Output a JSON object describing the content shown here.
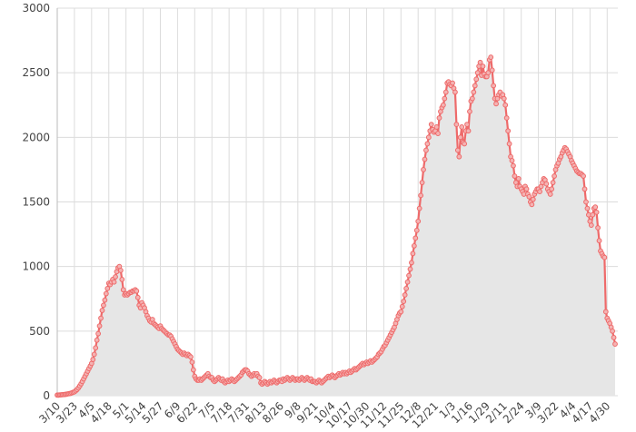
{
  "chart_data": {
    "type": "area",
    "categories": [
      "3/10",
      null,
      null,
      null,
      null,
      null,
      null,
      null,
      null,
      null,
      null,
      null,
      null,
      "3/23",
      null,
      null,
      null,
      null,
      null,
      null,
      null,
      null,
      null,
      null,
      null,
      null,
      "4/5",
      null,
      null,
      null,
      null,
      null,
      null,
      null,
      null,
      null,
      null,
      null,
      null,
      "4/18",
      null,
      null,
      null,
      null,
      null,
      null,
      null,
      null,
      null,
      null,
      null,
      null,
      "5/1",
      null,
      null,
      null,
      null,
      null,
      null,
      null,
      null,
      null,
      null,
      null,
      null,
      "5/14",
      null,
      null,
      null,
      null,
      null,
      null,
      null,
      null,
      null,
      null,
      null,
      null,
      "5/27",
      null,
      null,
      null,
      null,
      null,
      null,
      null,
      null,
      null,
      null,
      null,
      null,
      "6/9",
      null,
      null,
      null,
      null,
      null,
      null,
      null,
      null,
      null,
      null,
      null,
      null,
      "6/22",
      null,
      null,
      null,
      null,
      null,
      null,
      null,
      null,
      null,
      null,
      null,
      null,
      "7/5",
      null,
      null,
      null,
      null,
      null,
      null,
      null,
      null,
      null,
      null,
      null,
      null,
      "7/18",
      null,
      null,
      null,
      null,
      null,
      null,
      null,
      null,
      null,
      null,
      null,
      null,
      "7/31",
      null,
      null,
      null,
      null,
      null,
      null,
      null,
      null,
      null,
      null,
      null,
      null,
      "8/13",
      null,
      null,
      null,
      null,
      null,
      null,
      null,
      null,
      null,
      null,
      null,
      null,
      "8/26",
      null,
      null,
      null,
      null,
      null,
      null,
      null,
      null,
      null,
      null,
      null,
      null,
      "9/8",
      null,
      null,
      null,
      null,
      null,
      null,
      null,
      null,
      null,
      null,
      null,
      null,
      "9/21",
      null,
      null,
      null,
      null,
      null,
      null,
      null,
      null,
      null,
      null,
      null,
      null,
      "10/4",
      null,
      null,
      null,
      null,
      null,
      null,
      null,
      null,
      null,
      null,
      null,
      null,
      "10/17",
      null,
      null,
      null,
      null,
      null,
      null,
      null,
      null,
      null,
      null,
      null,
      null,
      "10/30",
      null,
      null,
      null,
      null,
      null,
      null,
      null,
      null,
      null,
      null,
      null,
      null,
      "11/12",
      null,
      null,
      null,
      null,
      null,
      null,
      null,
      null,
      null,
      null,
      null,
      null,
      "11/25",
      null,
      null,
      null,
      null,
      null,
      null,
      null,
      null,
      null,
      null,
      null,
      null,
      "12/8",
      null,
      null,
      null,
      null,
      null,
      null,
      null,
      null,
      null,
      null,
      null,
      null,
      "12/21",
      null,
      null,
      null,
      null,
      null,
      null,
      null,
      null,
      null,
      null,
      null,
      null,
      "1/3",
      null,
      null,
      null,
      null,
      null,
      null,
      null,
      null,
      null,
      null,
      null,
      null,
      "1/16",
      null,
      null,
      null,
      null,
      null,
      null,
      null,
      null,
      null,
      null,
      null,
      null,
      "1/29",
      null,
      null,
      null,
      null,
      null,
      null,
      null,
      null,
      null,
      null,
      null,
      null,
      "2/11",
      null,
      null,
      null,
      null,
      null,
      null,
      null,
      null,
      null,
      null,
      null,
      null,
      "2/24",
      null,
      null,
      null,
      null,
      null,
      null,
      null,
      null,
      null,
      null,
      null,
      null,
      "3/9",
      null,
      null,
      null,
      null,
      null,
      null,
      null,
      null,
      null,
      null,
      null,
      null,
      "3/22",
      null,
      null,
      null,
      null,
      null,
      null,
      null,
      null,
      null,
      null,
      null,
      null,
      "4/4",
      null,
      null,
      null,
      null,
      null,
      null,
      null,
      null,
      null,
      null,
      null,
      null,
      "4/17",
      null,
      null,
      null,
      null,
      null,
      null,
      null,
      null,
      null,
      null,
      null,
      null,
      "4/30",
      null,
      null,
      null,
      null,
      null,
      null
    ],
    "values": [
      5,
      5,
      6,
      7,
      8,
      9,
      10,
      12,
      14,
      16,
      18,
      22,
      26,
      30,
      38,
      48,
      60,
      75,
      92,
      110,
      130,
      150,
      170,
      190,
      210,
      230,
      250,
      280,
      320,
      370,
      430,
      480,
      540,
      600,
      660,
      700,
      740,
      790,
      830,
      870,
      860,
      880,
      900,
      880,
      920,
      960,
      990,
      1000,
      970,
      900,
      820,
      780,
      790,
      780,
      790,
      800,
      800,
      810,
      810,
      820,
      810,
      760,
      700,
      680,
      720,
      700,
      680,
      650,
      620,
      600,
      580,
      570,
      590,
      560,
      550,
      540,
      530,
      520,
      540,
      520,
      510,
      500,
      490,
      480,
      470,
      470,
      460,
      440,
      420,
      400,
      380,
      360,
      350,
      340,
      330,
      320,
      330,
      320,
      310,
      320,
      310,
      300,
      260,
      200,
      150,
      130,
      120,
      120,
      130,
      120,
      130,
      140,
      150,
      160,
      170,
      150,
      140,
      140,
      120,
      110,
      120,
      130,
      140,
      130,
      120,
      130,
      110,
      100,
      110,
      120,
      110,
      120,
      130,
      120,
      110,
      120,
      130,
      140,
      150,
      160,
      180,
      190,
      200,
      200,
      190,
      170,
      160,
      150,
      160,
      170,
      160,
      170,
      150,
      140,
      100,
      90,
      100,
      110,
      100,
      90,
      100,
      110,
      100,
      110,
      120,
      110,
      100,
      110,
      120,
      120,
      110,
      130,
      120,
      130,
      140,
      130,
      120,
      130,
      140,
      130,
      120,
      130,
      130,
      120,
      130,
      140,
      130,
      120,
      130,
      140,
      130,
      120,
      130,
      110,
      110,
      110,
      100,
      110,
      120,
      110,
      100,
      110,
      120,
      130,
      140,
      150,
      140,
      150,
      160,
      150,
      140,
      150,
      160,
      170,
      160,
      170,
      180,
      170,
      180,
      170,
      180,
      190,
      180,
      190,
      200,
      210,
      200,
      210,
      220,
      230,
      240,
      250,
      240,
      250,
      260,
      250,
      260,
      270,
      260,
      270,
      280,
      290,
      300,
      320,
      330,
      340,
      360,
      380,
      390,
      410,
      430,
      450,
      470,
      490,
      510,
      530,
      560,
      590,
      620,
      640,
      650,
      690,
      730,
      780,
      830,
      880,
      930,
      980,
      1030,
      1100,
      1160,
      1220,
      1280,
      1350,
      1450,
      1550,
      1650,
      1750,
      1830,
      1900,
      1950,
      2000,
      2050,
      2100,
      2060,
      2040,
      2050,
      2080,
      2030,
      2150,
      2200,
      2230,
      2250,
      2300,
      2350,
      2420,
      2430,
      2410,
      2400,
      2420,
      2380,
      2350,
      2100,
      1900,
      1850,
      2000,
      2080,
      1960,
      1950,
      2050,
      2100,
      2050,
      2200,
      2280,
      2300,
      2350,
      2400,
      2450,
      2500,
      2550,
      2580,
      2480,
      2550,
      2490,
      2470,
      2470,
      2500,
      2600,
      2620,
      2520,
      2400,
      2300,
      2260,
      2300,
      2330,
      2350,
      2320,
      2330,
      2300,
      2250,
      2150,
      2050,
      1950,
      1850,
      1820,
      1780,
      1700,
      1650,
      1620,
      1680,
      1620,
      1600,
      1580,
      1560,
      1620,
      1600,
      1560,
      1540,
      1500,
      1480,
      1520,
      1560,
      1580,
      1600,
      1600,
      1580,
      1620,
      1650,
      1680,
      1670,
      1640,
      1600,
      1580,
      1560,
      1600,
      1650,
      1700,
      1750,
      1780,
      1800,
      1830,
      1850,
      1880,
      1900,
      1920,
      1910,
      1890,
      1870,
      1850,
      1820,
      1800,
      1780,
      1760,
      1740,
      1730,
      1720,
      1720,
      1710,
      1700,
      1600,
      1500,
      1450,
      1400,
      1350,
      1320,
      1400,
      1450,
      1460,
      1420,
      1300,
      1200,
      1120,
      1100,
      1080,
      1070,
      650,
      600,
      580,
      560,
      530,
      500,
      450,
      400
    ],
    "color": "#ee6a6a",
    "area_color": "#e6e6e6",
    "ylim": [
      0,
      3000
    ],
    "yticks": [
      0,
      500,
      1000,
      1500,
      2000,
      2500,
      3000
    ],
    "grid": true
  }
}
